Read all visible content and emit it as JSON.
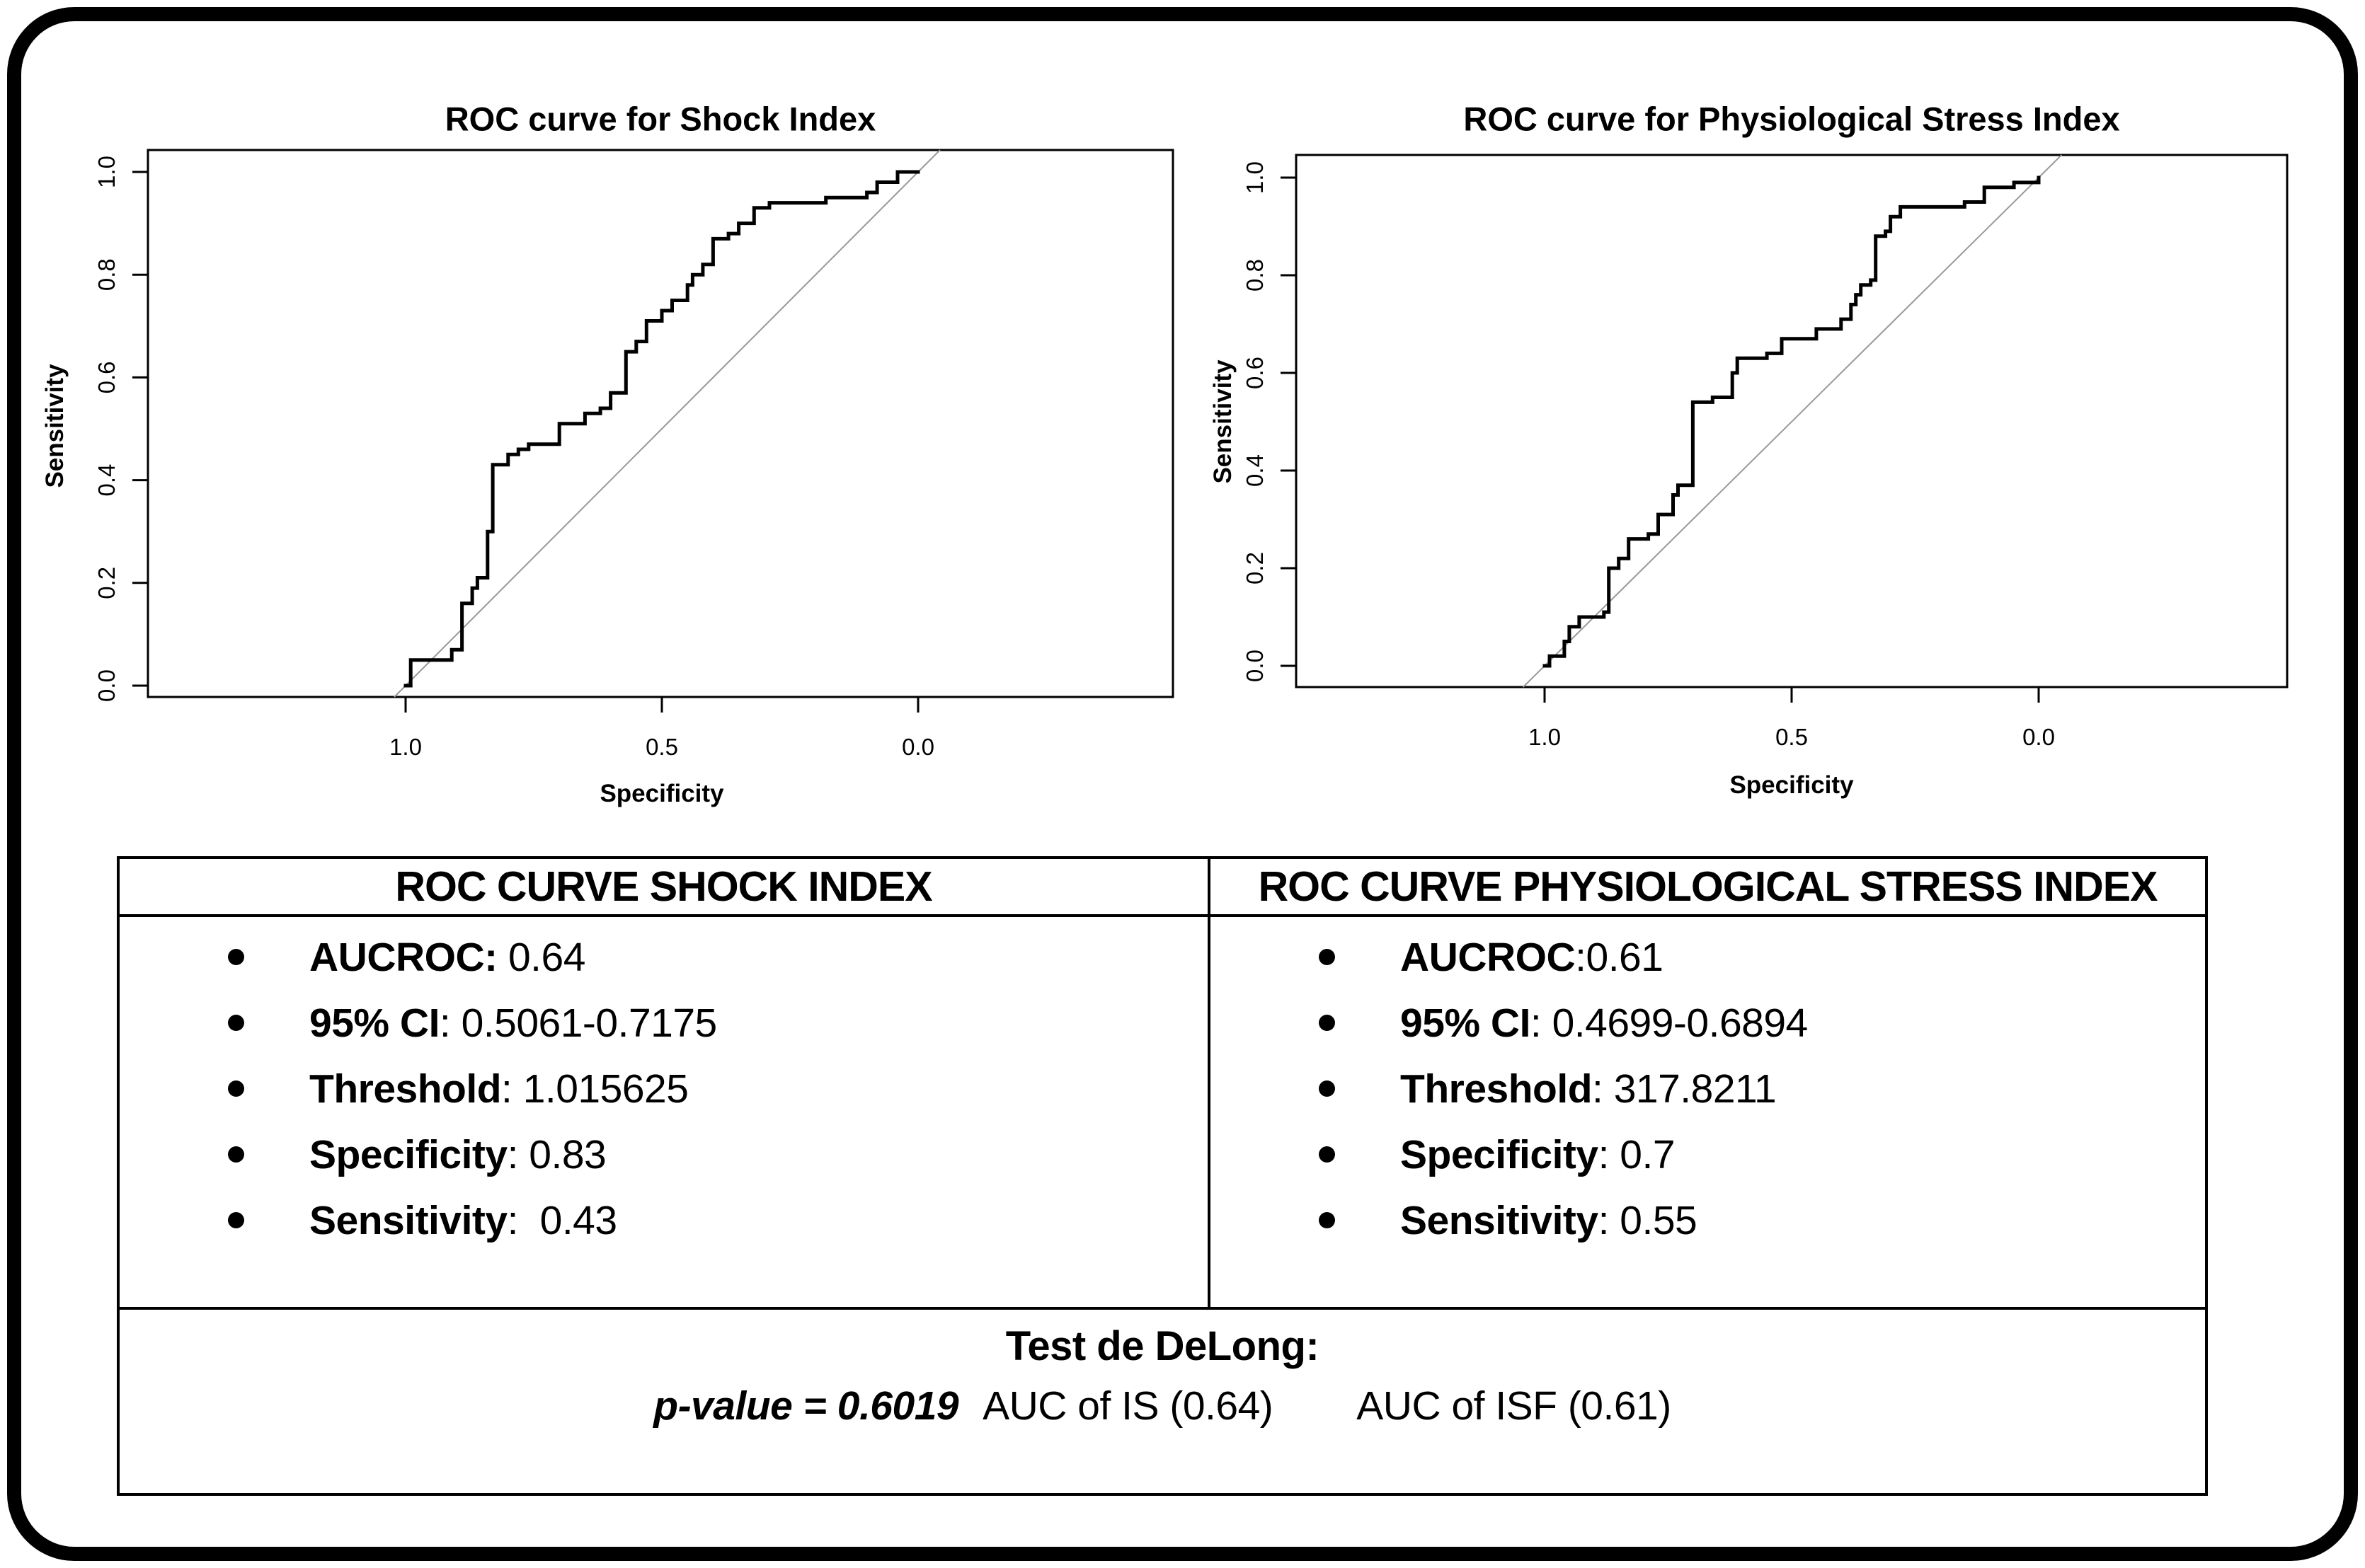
{
  "chart_data": [
    {
      "type": "line",
      "title": "ROC curve for Shock Index",
      "xlabel": "Specificity",
      "ylabel": "Sensitivity",
      "x_ticks": [
        "1.0",
        "0.5",
        "0.0"
      ],
      "y_ticks": [
        "0.0",
        "0.2",
        "0.4",
        "0.6",
        "0.8",
        "1.0"
      ],
      "xlim": [
        1.0,
        0.0
      ],
      "ylim": [
        0.0,
        1.0
      ],
      "x_reversed": true,
      "grid": false,
      "diagonal_reference": true,
      "auc": 0.64,
      "series": [
        {
          "name": "Shock Index ROC",
          "color": "#000000",
          "points_specificity_sensitivity": [
            [
              1.0,
              0.0
            ],
            [
              0.99,
              0.05
            ],
            [
              0.91,
              0.07
            ],
            [
              0.89,
              0.16
            ],
            [
              0.87,
              0.19
            ],
            [
              0.86,
              0.21
            ],
            [
              0.84,
              0.3
            ],
            [
              0.83,
              0.43
            ],
            [
              0.8,
              0.45
            ],
            [
              0.78,
              0.46
            ],
            [
              0.76,
              0.47
            ],
            [
              0.7,
              0.51
            ],
            [
              0.65,
              0.53
            ],
            [
              0.62,
              0.54
            ],
            [
              0.6,
              0.57
            ],
            [
              0.57,
              0.65
            ],
            [
              0.55,
              0.67
            ],
            [
              0.53,
              0.71
            ],
            [
              0.5,
              0.73
            ],
            [
              0.48,
              0.75
            ],
            [
              0.45,
              0.78
            ],
            [
              0.44,
              0.8
            ],
            [
              0.42,
              0.82
            ],
            [
              0.4,
              0.87
            ],
            [
              0.37,
              0.88
            ],
            [
              0.35,
              0.9
            ],
            [
              0.32,
              0.93
            ],
            [
              0.29,
              0.94
            ],
            [
              0.18,
              0.95
            ],
            [
              0.1,
              0.96
            ],
            [
              0.08,
              0.98
            ],
            [
              0.04,
              1.0
            ],
            [
              0.0,
              1.0
            ]
          ]
        }
      ]
    },
    {
      "type": "line",
      "title": "ROC curve for Physiological Stress Index",
      "xlabel": "Specificity",
      "ylabel": "Sensitivity",
      "x_ticks": [
        "1.0",
        "0.5",
        "0.0"
      ],
      "y_ticks": [
        "0.0",
        "0.2",
        "0.4",
        "0.6",
        "0.8",
        "1.0"
      ],
      "xlim": [
        1.0,
        0.0
      ],
      "ylim": [
        0.0,
        1.0
      ],
      "x_reversed": true,
      "grid": false,
      "diagonal_reference": true,
      "auc": 0.61,
      "series": [
        {
          "name": "Physiological Stress Index ROC",
          "color": "#000000",
          "points_specificity_sensitivity": [
            [
              1.0,
              0.0
            ],
            [
              0.99,
              0.02
            ],
            [
              0.96,
              0.05
            ],
            [
              0.95,
              0.08
            ],
            [
              0.93,
              0.1
            ],
            [
              0.88,
              0.11
            ],
            [
              0.87,
              0.2
            ],
            [
              0.85,
              0.22
            ],
            [
              0.83,
              0.26
            ],
            [
              0.79,
              0.27
            ],
            [
              0.77,
              0.31
            ],
            [
              0.74,
              0.35
            ],
            [
              0.73,
              0.37
            ],
            [
              0.7,
              0.54
            ],
            [
              0.66,
              0.55
            ],
            [
              0.62,
              0.6
            ],
            [
              0.61,
              0.63
            ],
            [
              0.55,
              0.64
            ],
            [
              0.52,
              0.67
            ],
            [
              0.45,
              0.69
            ],
            [
              0.4,
              0.71
            ],
            [
              0.38,
              0.74
            ],
            [
              0.37,
              0.76
            ],
            [
              0.36,
              0.78
            ],
            [
              0.34,
              0.79
            ],
            [
              0.33,
              0.88
            ],
            [
              0.31,
              0.89
            ],
            [
              0.3,
              0.92
            ],
            [
              0.28,
              0.94
            ],
            [
              0.15,
              0.95
            ],
            [
              0.11,
              0.98
            ],
            [
              0.05,
              0.99
            ],
            [
              0.0,
              1.0
            ]
          ]
        }
      ]
    }
  ],
  "table": {
    "columns": [
      {
        "header": "ROC CURVE SHOCK INDEX",
        "items": [
          {
            "label": "AUCROC:",
            "value": " 0.64"
          },
          {
            "label": "95% CI",
            "value": ": 0.5061-0.7175"
          },
          {
            "label": "Threshold",
            "value": ": 1.015625"
          },
          {
            "label": "Specificity",
            "value": ": 0.83"
          },
          {
            "label": "Sensitivity",
            "value": ":  0.43"
          }
        ]
      },
      {
        "header": "ROC CURVE PHYSIOLOGICAL STRESS INDEX",
        "items": [
          {
            "label": "AUCROC",
            "value": ":0.61"
          },
          {
            "label": "95% CI",
            "value": ": 0.4699-0.6894"
          },
          {
            "label": "Threshold",
            "value": ": 317.8211"
          },
          {
            "label": "Specificity",
            "value": ": 0.7"
          },
          {
            "label": "Sensitivity",
            "value": ": 0.55"
          }
        ]
      }
    ],
    "footer": {
      "title": "Test de DeLong:",
      "p_value": "p-value = 0.6019",
      "auc_is": "AUC of IS (0.64)",
      "auc_isf": "AUC of ISF (0.61)"
    }
  },
  "colors": {
    "curve": "#000000",
    "diagonal_reference": "#999999",
    "frame": "#000000",
    "background": "#ffffff"
  }
}
